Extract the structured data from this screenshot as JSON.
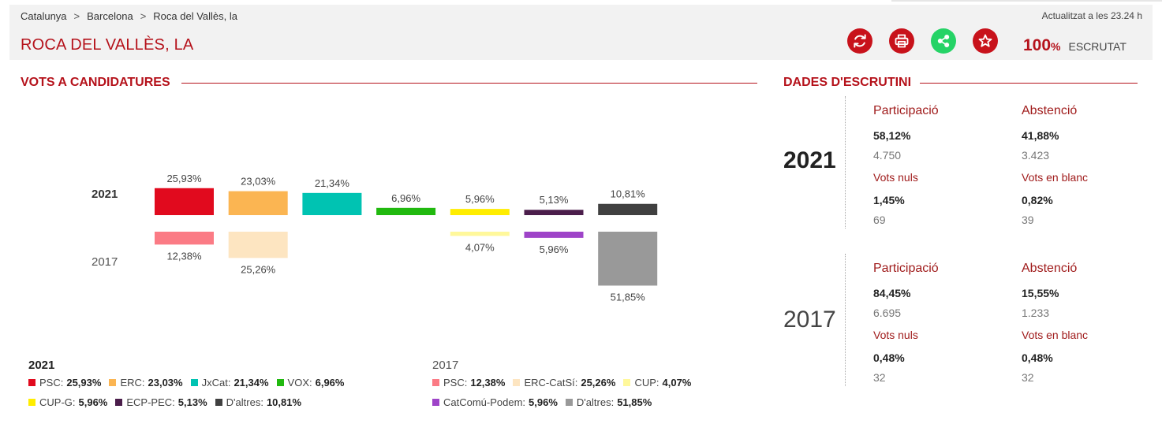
{
  "breadcrumb": [
    "Catalunya",
    "Barcelona",
    "Roca del Vallès, la"
  ],
  "breadcrumb_separator": ">",
  "updated_text": "Actualitzat a les 23.24 h",
  "place_title": "ROCA DEL VALLÈS, LA",
  "actions": [
    {
      "name": "refresh-button",
      "icon": "refresh-icon"
    },
    {
      "name": "print-button",
      "icon": "print-icon"
    },
    {
      "name": "share-button",
      "icon": "share-icon"
    },
    {
      "name": "favorite-button",
      "icon": "star-icon"
    }
  ],
  "scrutiny": {
    "value": "100",
    "unit": "%",
    "label": "ESCRUTAT"
  },
  "sections": {
    "votes_title": "VOTS A CANDIDATURES",
    "scrutiny_title": "DADES D'ESCRUTINI"
  },
  "colors": {
    "accent": "#b5121b",
    "share": "#25d366"
  },
  "chart_data": {
    "type": "bar",
    "description_free": true,
    "series": [
      {
        "name": "2021",
        "direction": "up",
        "values": [
          25.93,
          23.03,
          21.34,
          6.96,
          5.96,
          5.13,
          10.81
        ],
        "labels": [
          "25,93%",
          "23,03%",
          "21,34%",
          "6,96%",
          "5,96%",
          "5,13%",
          "10,81%"
        ],
        "colors": [
          "#e10a1e",
          "#fbb552",
          "#00c3b2",
          "#21b90f",
          "#ffed00",
          "#4b1e4b",
          "#404040"
        ]
      },
      {
        "name": "2017",
        "direction": "down",
        "values": [
          12.38,
          25.26,
          null,
          null,
          4.07,
          5.96,
          51.85
        ],
        "labels": [
          "12,38%",
          "25,26%",
          "",
          "",
          "4,07%",
          "5,96%",
          "51,85%"
        ],
        "colors": [
          "#fb7b85",
          "#fde5c1",
          null,
          null,
          "#fff89b",
          "#9e44c8",
          "#999999"
        ]
      }
    ]
  },
  "legend": {
    "y2021": {
      "year": "2021",
      "rows": [
        [
          {
            "name": "PSC:",
            "value": "25,93%",
            "color": "#e10a1e"
          },
          {
            "name": "ERC:",
            "value": "23,03%",
            "color": "#fbb552"
          },
          {
            "name": "JxCat:",
            "value": "21,34%",
            "color": "#00c3b2"
          },
          {
            "name": "VOX:",
            "value": "6,96%",
            "color": "#21b90f"
          }
        ],
        [
          {
            "name": "CUP-G:",
            "value": "5,96%",
            "color": "#ffed00"
          },
          {
            "name": "ECP-PEC:",
            "value": "5,13%",
            "color": "#4b1e4b"
          },
          {
            "name": "D'altres:",
            "value": "10,81%",
            "color": "#404040"
          }
        ]
      ]
    },
    "y2017": {
      "year": "2017",
      "rows": [
        [
          {
            "name": "PSC:",
            "value": "12,38%",
            "color": "#fb7b85"
          },
          {
            "name": "ERC-CatSí:",
            "value": "25,26%",
            "color": "#fde5c1"
          },
          {
            "name": "CUP:",
            "value": "4,07%",
            "color": "#fff89b"
          }
        ],
        [
          {
            "name": "CatComú-Podem:",
            "value": "5,96%",
            "color": "#9e44c8"
          },
          {
            "name": "D'altres:",
            "value": "51,85%",
            "color": "#999999"
          }
        ]
      ]
    }
  },
  "stats": {
    "y2021": {
      "year": "2021",
      "participacio": {
        "label": "Participació",
        "pct": "58,12%",
        "num": "4.750"
      },
      "abstencio": {
        "label": "Abstenció",
        "pct": "41,88%",
        "num": "3.423"
      },
      "nuls": {
        "label": "Vots nuls",
        "pct": "1,45%",
        "num": "69"
      },
      "blanc": {
        "label": "Vots en blanc",
        "pct": "0,82%",
        "num": "39"
      }
    },
    "y2017": {
      "year": "2017",
      "participacio": {
        "label": "Participació",
        "pct": "84,45%",
        "num": "6.695"
      },
      "abstencio": {
        "label": "Abstenció",
        "pct": "15,55%",
        "num": "1.233"
      },
      "nuls": {
        "label": "Vots nuls",
        "pct": "0,48%",
        "num": "32"
      },
      "blanc": {
        "label": "Vots en blanc",
        "pct": "0,48%",
        "num": "32"
      }
    }
  }
}
